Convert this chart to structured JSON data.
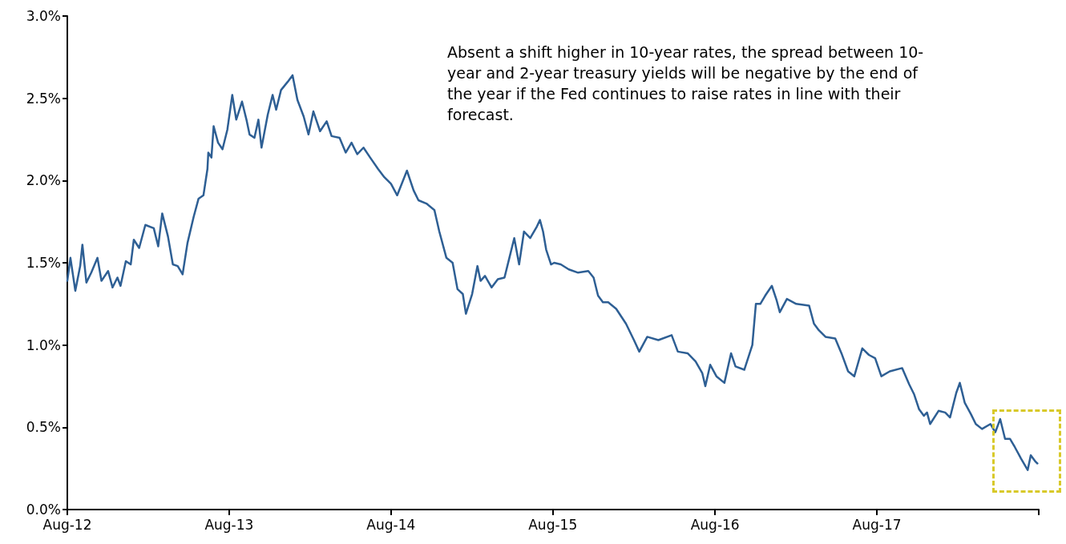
{
  "chart_data": {
    "type": "line",
    "annotations": [
      "Absent a shift higher in 10-year rates, the spread between 10-year and 2-year treasury yields will be negative by the end of the year if the Fed continues to raise rates in line with their forecast."
    ],
    "xlim": [
      "2012-08-01",
      "2018-08-01"
    ],
    "xticks": [
      {
        "value": "2012-08-01",
        "label": "Aug-12"
      },
      {
        "value": "2013-08-01",
        "label": "Aug-13"
      },
      {
        "value": "2014-08-01",
        "label": "Aug-14"
      },
      {
        "value": "2015-08-01",
        "label": "Aug-15"
      },
      {
        "value": "2016-08-01",
        "label": "Aug-16"
      },
      {
        "value": "2017-08-01",
        "label": "Aug-17"
      },
      {
        "value": "2018-08-01",
        "label": null
      }
    ],
    "ylim": [
      0,
      3
    ],
    "yticks": [
      {
        "value": 0,
        "label": "0.0%"
      },
      {
        "value": 0.5,
        "label": "0.5%"
      },
      {
        "value": 1,
        "label": "1.0%"
      },
      {
        "value": 1.5,
        "label": "1.5%"
      },
      {
        "value": 2,
        "label": "2.0%"
      },
      {
        "value": 2.5,
        "label": "2.5%"
      },
      {
        "value": 3,
        "label": "3.0%"
      }
    ],
    "grid": false,
    "legend": false,
    "marker": "none",
    "line_style": "solid",
    "series": [
      {
        "color": "#2e5f94",
        "x": [
          "2012-08-01",
          "2012-08-08",
          "2012-08-19",
          "2012-08-30",
          "2012-09-04",
          "2012-09-13",
          "2012-09-24",
          "2012-10-08",
          "2012-10-17",
          "2012-11-01",
          "2012-11-11",
          "2012-11-22",
          "2012-11-29",
          "2012-12-11",
          "2012-12-22",
          "2012-12-29",
          "2013-01-10",
          "2013-01-24",
          "2013-02-12",
          "2013-02-22",
          "2013-03-03",
          "2013-03-16",
          "2013-03-27",
          "2013-04-07",
          "2013-04-18",
          "2013-04-29",
          "2013-05-13",
          "2013-05-24",
          "2013-06-04",
          "2013-06-13",
          "2013-06-15",
          "2013-06-22",
          "2013-06-27",
          "2013-07-07",
          "2013-07-17",
          "2013-07-28",
          "2013-08-08",
          "2013-08-17",
          "2013-08-30",
          "2013-09-09",
          "2013-09-16",
          "2013-09-27",
          "2013-10-06",
          "2013-10-13",
          "2013-10-27",
          "2013-11-07",
          "2013-11-15",
          "2013-11-26",
          "2013-12-11",
          "2013-12-22",
          "2014-01-02",
          "2014-01-16",
          "2014-01-27",
          "2014-02-07",
          "2014-02-22",
          "2014-03-09",
          "2014-03-20",
          "2014-04-07",
          "2014-04-21",
          "2014-05-04",
          "2014-05-17",
          "2014-05-31",
          "2014-06-15",
          "2014-07-03",
          "2014-07-17",
          "2014-08-01",
          "2014-08-15",
          "2014-09-06",
          "2014-09-21",
          "2014-10-02",
          "2014-10-20",
          "2014-11-07",
          "2014-11-18",
          "2014-12-04",
          "2014-12-18",
          "2014-12-29",
          "2015-01-10",
          "2015-01-17",
          "2015-01-31",
          "2015-02-12",
          "2015-02-19",
          "2015-03-01",
          "2015-03-16",
          "2015-03-30",
          "2015-04-14",
          "2015-04-25",
          "2015-05-06",
          "2015-05-17",
          "2015-05-28",
          "2015-06-11",
          "2015-06-26",
          "2015-07-03",
          "2015-07-10",
          "2015-07-17",
          "2015-07-28",
          "2015-08-04",
          "2015-08-19",
          "2015-09-06",
          "2015-09-27",
          "2015-10-20",
          "2015-11-01",
          "2015-11-11",
          "2015-11-22",
          "2015-12-04",
          "2015-12-22",
          "2016-01-13",
          "2016-01-31",
          "2016-02-12",
          "2016-03-01",
          "2016-03-26",
          "2016-04-25",
          "2016-05-09",
          "2016-05-31",
          "2016-06-18",
          "2016-07-03",
          "2016-07-10",
          "2016-07-21",
          "2016-08-04",
          "2016-08-22",
          "2016-09-06",
          "2016-09-16",
          "2016-10-06",
          "2016-10-24",
          "2016-11-01",
          "2016-11-11",
          "2016-11-22",
          "2016-12-07",
          "2016-12-18",
          "2016-12-25",
          "2017-01-10",
          "2017-01-31",
          "2017-03-01",
          "2017-03-12",
          "2017-03-23",
          "2017-04-07",
          "2017-04-29",
          "2017-05-13",
          "2017-05-28",
          "2017-06-11",
          "2017-06-29",
          "2017-07-14",
          "2017-07-28",
          "2017-08-11",
          "2017-08-30",
          "2017-09-27",
          "2017-10-13",
          "2017-10-24",
          "2017-11-04",
          "2017-11-15",
          "2017-11-22",
          "2017-11-29",
          "2017-12-18",
          "2018-01-02",
          "2018-01-13",
          "2018-01-27",
          "2018-02-04",
          "2018-02-15",
          "2018-03-01",
          "2018-03-12",
          "2018-03-26",
          "2018-04-14",
          "2018-04-25",
          "2018-05-06",
          "2018-05-17",
          "2018-05-28",
          "2018-06-08",
          "2018-06-22",
          "2018-07-07",
          "2018-07-14",
          "2018-07-25",
          "2018-07-29"
        ],
        "values": [
          1.39,
          1.53,
          1.33,
          1.48,
          1.61,
          1.38,
          1.44,
          1.53,
          1.39,
          1.45,
          1.35,
          1.41,
          1.36,
          1.51,
          1.49,
          1.64,
          1.59,
          1.73,
          1.71,
          1.6,
          1.8,
          1.66,
          1.49,
          1.48,
          1.43,
          1.62,
          1.78,
          1.89,
          1.91,
          2.07,
          2.17,
          2.14,
          2.33,
          2.23,
          2.19,
          2.31,
          2.52,
          2.37,
          2.48,
          2.37,
          2.28,
          2.26,
          2.37,
          2.2,
          2.4,
          2.52,
          2.43,
          2.55,
          2.6,
          2.64,
          2.49,
          2.39,
          2.28,
          2.42,
          2.3,
          2.36,
          2.27,
          2.26,
          2.17,
          2.23,
          2.16,
          2.2,
          2.14,
          2.07,
          2.02,
          1.98,
          1.91,
          2.06,
          1.94,
          1.88,
          1.86,
          1.82,
          1.69,
          1.53,
          1.5,
          1.34,
          1.31,
          1.19,
          1.31,
          1.48,
          1.39,
          1.42,
          1.35,
          1.4,
          1.41,
          1.53,
          1.65,
          1.49,
          1.69,
          1.65,
          1.72,
          1.76,
          1.69,
          1.58,
          1.49,
          1.5,
          1.49,
          1.46,
          1.44,
          1.45,
          1.41,
          1.3,
          1.26,
          1.26,
          1.22,
          1.13,
          1.03,
          0.96,
          1.05,
          1.03,
          1.06,
          0.96,
          0.95,
          0.9,
          0.83,
          0.75,
          0.88,
          0.81,
          0.77,
          0.95,
          0.87,
          0.85,
          1.0,
          1.25,
          1.25,
          1.3,
          1.36,
          1.27,
          1.2,
          1.28,
          1.25,
          1.24,
          1.13,
          1.09,
          1.05,
          1.04,
          0.95,
          0.84,
          0.81,
          0.98,
          0.94,
          0.92,
          0.81,
          0.84,
          0.86,
          0.76,
          0.7,
          0.61,
          0.57,
          0.59,
          0.52,
          0.6,
          0.59,
          0.56,
          0.71,
          0.77,
          0.65,
          0.58,
          0.52,
          0.49,
          0.52,
          0.47,
          0.55,
          0.43,
          0.43,
          0.38,
          0.31,
          0.24,
          0.33,
          0.29,
          0.28
        ]
      }
    ]
  }
}
